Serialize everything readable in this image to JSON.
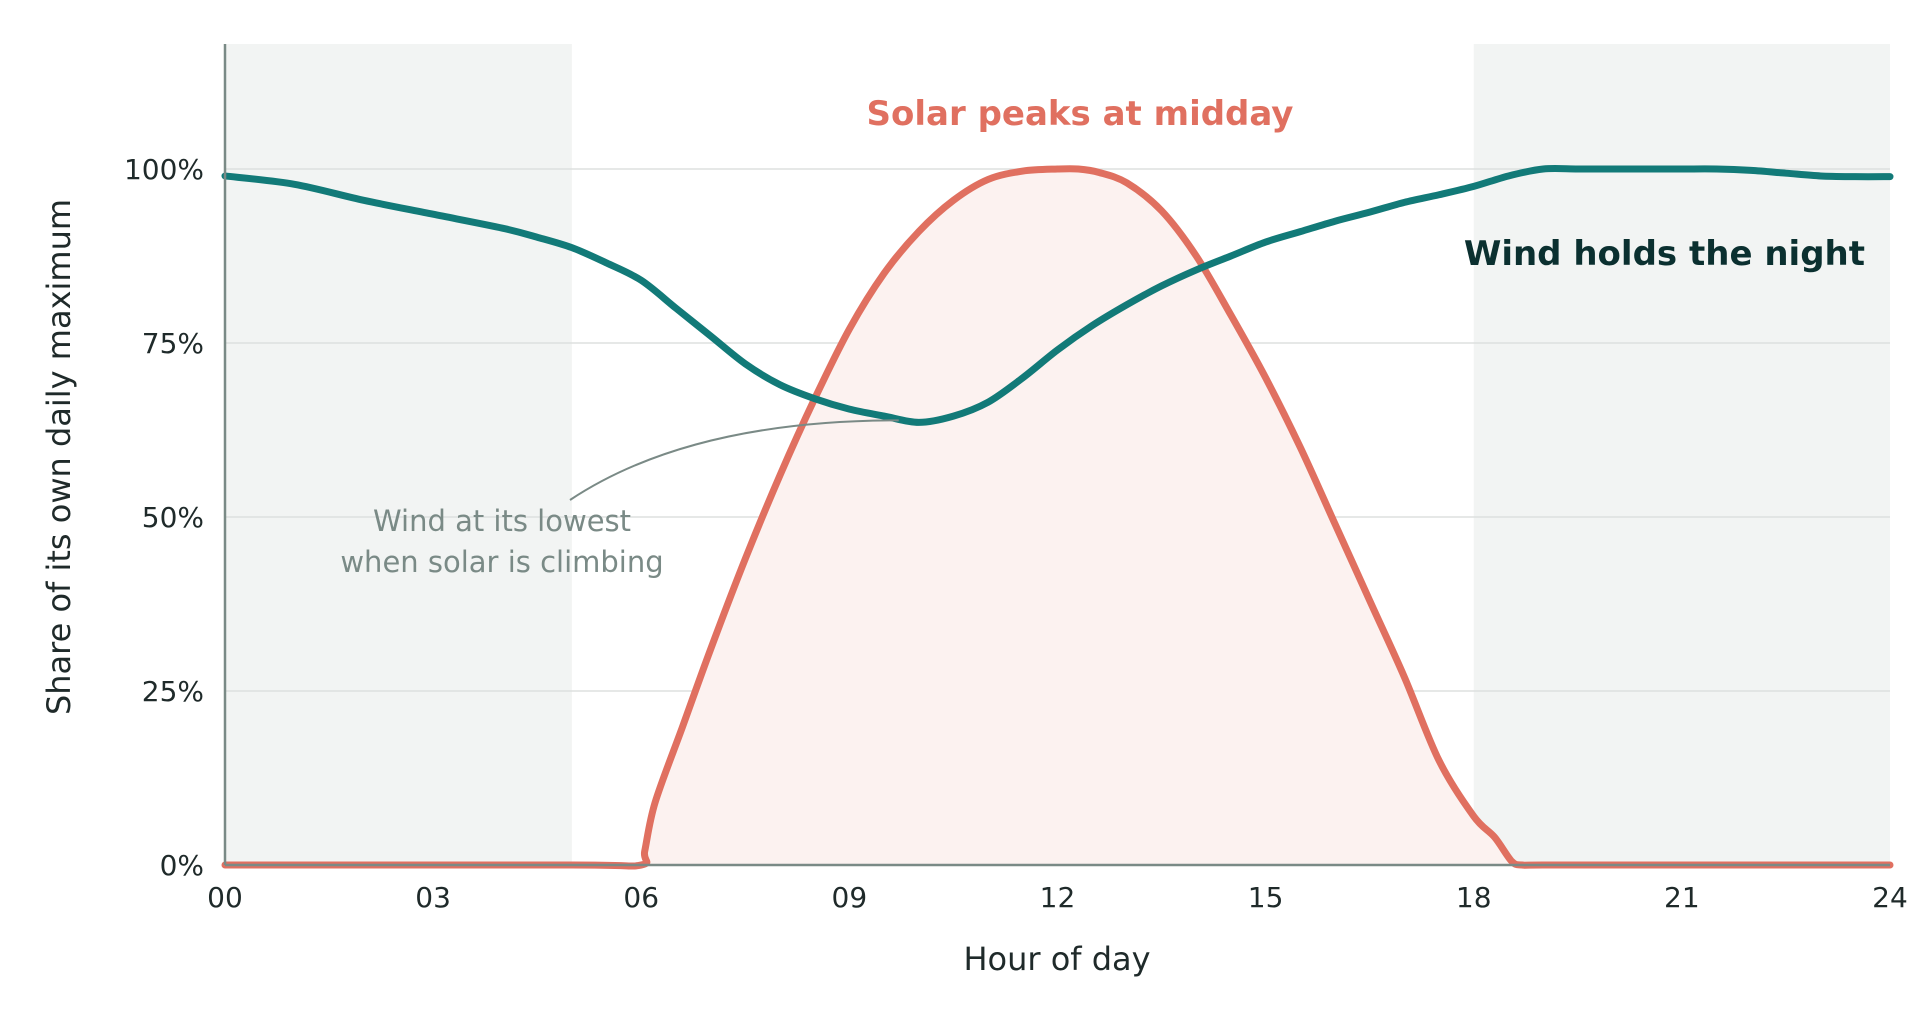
{
  "chart_data": {
    "type": "line",
    "title": "",
    "xlabel": "Hour of day",
    "ylabel": "Share of its own daily maximum",
    "xlim": [
      0,
      24
    ],
    "ylim": [
      0,
      1.2
    ],
    "x_ticks": [
      0,
      3,
      6,
      9,
      12,
      15,
      18,
      21,
      24
    ],
    "x_tick_labels": [
      "00",
      "03",
      "06",
      "09",
      "12",
      "15",
      "18",
      "21",
      "24"
    ],
    "y_ticks": [
      0,
      0.25,
      0.5,
      0.75,
      1.0
    ],
    "y_tick_labels": [
      "0%",
      "25%",
      "50%",
      "75%",
      "100%"
    ],
    "grid": "horizontal",
    "night_bands": [
      [
        0,
        5
      ],
      [
        18,
        24
      ]
    ],
    "series": [
      {
        "key": "solar",
        "color": "#e07060",
        "fill": "#fcf2f0",
        "x": [
          0,
          5,
          6,
          6.05,
          6.2,
          6.6,
          7,
          7.5,
          8,
          8.5,
          9,
          9.5,
          10,
          10.5,
          11,
          11.5,
          12,
          12.3,
          12.6,
          13,
          13.5,
          14,
          14.5,
          15,
          15.5,
          16,
          16.5,
          17,
          17.5,
          18,
          18.3,
          18.55,
          18.7,
          19,
          21,
          24
        ],
        "y": [
          0,
          0,
          0,
          0.02,
          0.09,
          0.2,
          0.31,
          0.44,
          0.56,
          0.67,
          0.77,
          0.85,
          0.91,
          0.955,
          0.985,
          0.997,
          1.0,
          1.0,
          0.995,
          0.98,
          0.94,
          0.875,
          0.79,
          0.7,
          0.6,
          0.49,
          0.38,
          0.27,
          0.15,
          0.07,
          0.04,
          0.005,
          0,
          0,
          0,
          0
        ]
      },
      {
        "key": "wind",
        "color": "#127a78",
        "x": [
          0,
          1,
          2,
          3,
          4,
          4.5,
          5,
          5.5,
          6,
          6.5,
          7,
          7.5,
          8,
          8.5,
          9,
          9.5,
          10,
          10.5,
          11,
          11.5,
          12,
          12.5,
          13,
          13.5,
          14,
          14.5,
          15,
          15.5,
          16,
          16.5,
          17,
          17.5,
          18,
          18.5,
          19,
          19.5,
          20,
          20.5,
          21,
          21.5,
          22,
          22.5,
          23,
          23.5,
          24
        ],
        "y": [
          0.99,
          0.978,
          0.955,
          0.935,
          0.915,
          0.902,
          0.887,
          0.865,
          0.84,
          0.8,
          0.76,
          0.72,
          0.69,
          0.67,
          0.655,
          0.645,
          0.636,
          0.645,
          0.665,
          0.7,
          0.74,
          0.775,
          0.805,
          0.832,
          0.855,
          0.875,
          0.895,
          0.91,
          0.925,
          0.938,
          0.952,
          0.963,
          0.975,
          0.99,
          1.0,
          1.0,
          1.0,
          1.0,
          1.0,
          1.0,
          0.998,
          0.994,
          0.99,
          0.989,
          0.989
        ]
      }
    ],
    "annotations": {
      "solar": "Solar peaks at midday",
      "wind": "Wind holds the night",
      "note_line1": "Wind at its lowest",
      "note_line2": "when solar is climbing"
    }
  }
}
